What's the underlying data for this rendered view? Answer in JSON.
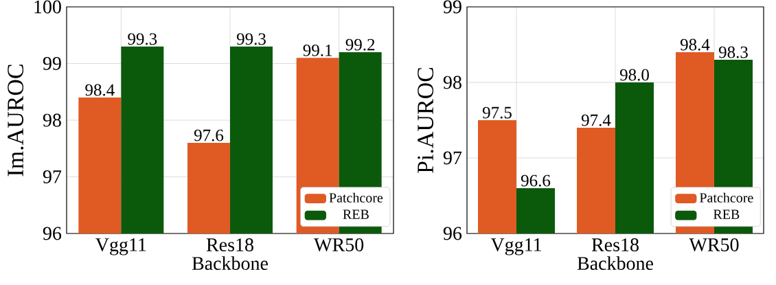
{
  "chart_data": [
    {
      "type": "bar",
      "xlabel": "Backbone",
      "ylabel": "Im.AUROC",
      "categories": [
        "Vgg11",
        "Res18",
        "WR50"
      ],
      "series": [
        {
          "name": "Patchcore",
          "color": "#e05a24",
          "values": [
            98.4,
            97.6,
            99.1
          ],
          "value_labels": [
            "98.4",
            "97.6",
            "99.1"
          ]
        },
        {
          "name": "REB",
          "color": "#0b5a0b",
          "values": [
            99.3,
            99.3,
            99.2
          ],
          "value_labels": [
            "99.3",
            "99.3",
            "99.2"
          ]
        }
      ],
      "ylim": [
        96,
        100
      ],
      "yticks": [
        96,
        97,
        98,
        99,
        100
      ],
      "grid": true,
      "legend": "bottom right"
    },
    {
      "type": "bar",
      "xlabel": "Backbone",
      "ylabel": "Pi.AUROC",
      "categories": [
        "Vgg11",
        "Res18",
        "WR50"
      ],
      "series": [
        {
          "name": "Patchcore",
          "color": "#e05a24",
          "values": [
            97.5,
            97.4,
            98.4
          ],
          "value_labels": [
            "97.5",
            "97.4",
            "98.4"
          ]
        },
        {
          "name": "REB",
          "color": "#0b5a0b",
          "values": [
            96.6,
            98.0,
            98.3
          ],
          "value_labels": [
            "96.6",
            "98.0",
            "98.3"
          ]
        }
      ],
      "ylim": [
        96,
        99
      ],
      "yticks": [
        96,
        97,
        98,
        99
      ],
      "grid": true,
      "legend": "bottom right"
    }
  ]
}
